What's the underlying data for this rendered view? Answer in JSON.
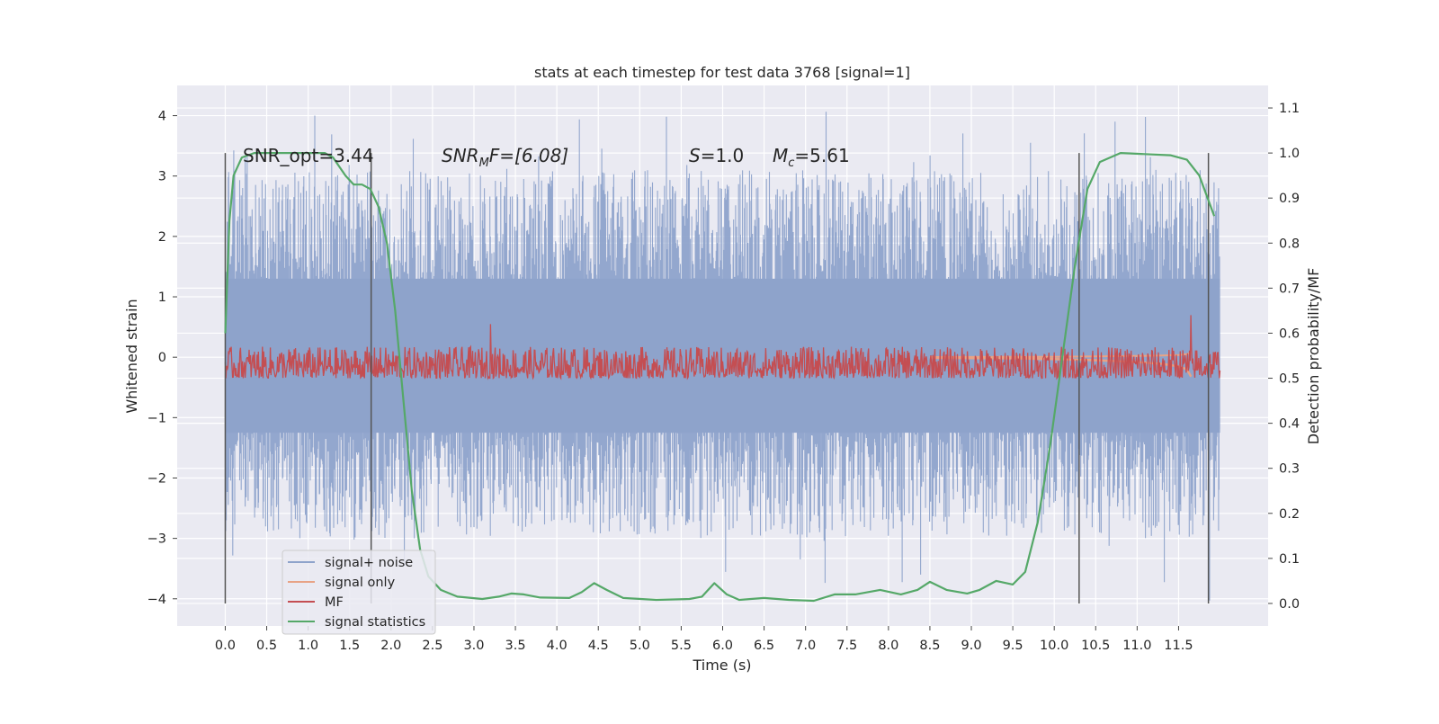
{
  "chart_data": {
    "type": "line",
    "title": "stats at each timestep for test data 3768 [signal=1]",
    "xlabel": "Time (s)",
    "ylabel_left": "Whitened strain",
    "ylabel_right": "Detection probability/MF",
    "xlim": [
      -0.58,
      12.58
    ],
    "ylim_left": [
      -4.45,
      4.5
    ],
    "ylim_right": [
      -0.05,
      1.15
    ],
    "x_ticks": [
      "0.0",
      "0.5",
      "1.0",
      "1.5",
      "2.0",
      "2.5",
      "3.0",
      "3.5",
      "4.0",
      "4.5",
      "5.0",
      "5.5",
      "6.0",
      "6.5",
      "7.0",
      "7.5",
      "8.0",
      "8.5",
      "9.0",
      "9.5",
      "10.0",
      "10.5",
      "11.0",
      "11.5"
    ],
    "y_ticks_left": [
      "4",
      "3",
      "2",
      "1",
      "0",
      "−1",
      "−2",
      "−3",
      "−4"
    ],
    "y_ticks_right": [
      "1.1",
      "1.0",
      "0.9",
      "0.8",
      "0.7",
      "0.6",
      "0.5",
      "0.4",
      "0.3",
      "0.2",
      "0.1",
      "0.0"
    ],
    "grid": true,
    "legend_position": "lower-left",
    "annotations": {
      "snr_opt": "SNR_opt=3.44",
      "snr_mf_sym": "SNR",
      "snr_mf_sub": "M",
      "snr_mf_rest": "F=[6.08]",
      "s_sym": "S",
      "s_rest": "=1.0",
      "mc_sym": "M",
      "mc_sub": "c",
      "mc_rest": "=5.61"
    },
    "vertical_lines_x": [
      0.0,
      1.76,
      10.3,
      11.86
    ],
    "series": [
      {
        "name": "signal+ noise",
        "color": "#8ea3cb",
        "style": "noise-band",
        "envelope": {
          "x": [
            0.0,
            12.0
          ],
          "upper_typical": 2.3,
          "upper_max": 4.1,
          "lower_typical": -2.2,
          "lower_min": -4.05
        }
      },
      {
        "name": "signal only",
        "color": "#e8a386",
        "style": "chirp",
        "points": [
          [
            8.5,
            -0.01
          ],
          [
            9.5,
            -0.02
          ],
          [
            10.0,
            -0.03
          ],
          [
            10.5,
            -0.05
          ],
          [
            11.0,
            -0.08
          ],
          [
            11.3,
            -0.11
          ],
          [
            11.5,
            -0.15
          ],
          [
            11.6,
            -0.2
          ],
          [
            11.65,
            -0.32
          ]
        ]
      },
      {
        "name": "MF",
        "color": "#c44e52",
        "style": "noise-right-axis",
        "envelope": {
          "x": [
            0.0,
            12.0
          ],
          "baseline": 0.5,
          "upper_typical": 0.57,
          "peaks": [
            [
              3.2,
              0.62
            ],
            [
              11.65,
              0.64
            ]
          ]
        }
      },
      {
        "name": "signal statistics",
        "color": "#55a868",
        "axis": "right",
        "points": [
          [
            0.0,
            0.6
          ],
          [
            0.05,
            0.85
          ],
          [
            0.1,
            0.95
          ],
          [
            0.2,
            0.99
          ],
          [
            0.35,
            1.0
          ],
          [
            1.2,
            1.0
          ],
          [
            1.3,
            0.99
          ],
          [
            1.45,
            0.95
          ],
          [
            1.55,
            0.93
          ],
          [
            1.65,
            0.93
          ],
          [
            1.75,
            0.92
          ],
          [
            1.85,
            0.88
          ],
          [
            1.95,
            0.8
          ],
          [
            2.05,
            0.65
          ],
          [
            2.15,
            0.45
          ],
          [
            2.25,
            0.25
          ],
          [
            2.35,
            0.12
          ],
          [
            2.45,
            0.06
          ],
          [
            2.6,
            0.03
          ],
          [
            2.8,
            0.015
          ],
          [
            3.1,
            0.01
          ],
          [
            3.3,
            0.015
          ],
          [
            3.45,
            0.022
          ],
          [
            3.6,
            0.02
          ],
          [
            3.8,
            0.013
          ],
          [
            4.15,
            0.012
          ],
          [
            4.3,
            0.025
          ],
          [
            4.45,
            0.045
          ],
          [
            4.6,
            0.03
          ],
          [
            4.8,
            0.012
          ],
          [
            5.2,
            0.008
          ],
          [
            5.6,
            0.01
          ],
          [
            5.75,
            0.015
          ],
          [
            5.9,
            0.045
          ],
          [
            6.05,
            0.02
          ],
          [
            6.2,
            0.008
          ],
          [
            6.5,
            0.012
          ],
          [
            6.8,
            0.008
          ],
          [
            7.1,
            0.006
          ],
          [
            7.35,
            0.02
          ],
          [
            7.6,
            0.02
          ],
          [
            7.9,
            0.03
          ],
          [
            8.15,
            0.02
          ],
          [
            8.35,
            0.03
          ],
          [
            8.5,
            0.048
          ],
          [
            8.7,
            0.03
          ],
          [
            8.95,
            0.022
          ],
          [
            9.1,
            0.03
          ],
          [
            9.3,
            0.05
          ],
          [
            9.5,
            0.042
          ],
          [
            9.65,
            0.07
          ],
          [
            9.8,
            0.18
          ],
          [
            9.95,
            0.35
          ],
          [
            10.1,
            0.55
          ],
          [
            10.25,
            0.75
          ],
          [
            10.4,
            0.92
          ],
          [
            10.55,
            0.98
          ],
          [
            10.8,
            1.0
          ],
          [
            11.4,
            0.995
          ],
          [
            11.6,
            0.985
          ],
          [
            11.75,
            0.95
          ],
          [
            11.85,
            0.9
          ],
          [
            11.93,
            0.86
          ]
        ]
      }
    ]
  }
}
